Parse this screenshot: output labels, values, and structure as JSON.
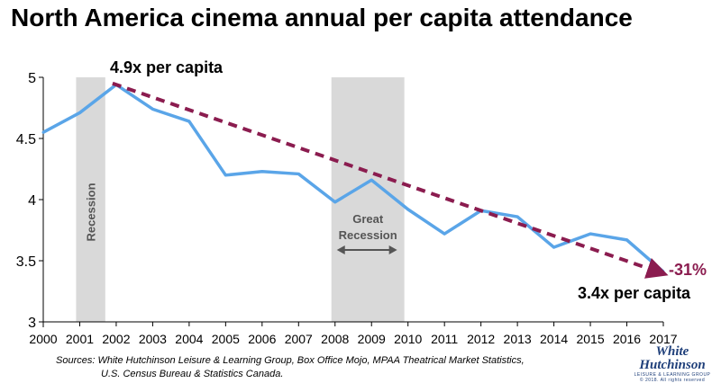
{
  "title": "North America cinema annual per capita attendance",
  "chart_data": {
    "type": "line",
    "x": [
      "2000",
      "2001",
      "2002",
      "2003",
      "2004",
      "2005",
      "2006",
      "2007",
      "2008",
      "2009",
      "2010",
      "2011",
      "2012",
      "2013",
      "2014",
      "2015",
      "2016",
      "2017"
    ],
    "values": [
      4.55,
      4.71,
      4.94,
      4.74,
      4.64,
      4.2,
      4.23,
      4.21,
      3.98,
      4.16,
      3.92,
      3.72,
      3.91,
      3.86,
      3.61,
      3.72,
      3.67,
      3.41
    ],
    "yticks": [
      "3",
      "3.5",
      "4",
      "4.5",
      "5"
    ],
    "ylim": [
      3,
      5.2
    ],
    "line_color": "#5aa5e8",
    "trend": {
      "from": [
        "2001.9",
        4.95
      ],
      "to": [
        "2017",
        3.4
      ],
      "color": "#8b1c4f"
    },
    "shaded_periods": [
      {
        "start": 2000.9,
        "end": 2001.7,
        "label": "Recession"
      },
      {
        "start": 2007.9,
        "end": 2009.9,
        "label": "Great\nRecession"
      }
    ],
    "annotations": {
      "start_label": "4.9x per capita",
      "end_label": "3.4x per capita",
      "change_label": "-31%",
      "great_recession_line1": "Great",
      "great_recession_line2": "Recession",
      "recession": "Recession"
    },
    "shade_color": "#d9d9d9",
    "accent_color": "#8b1c4f"
  },
  "sources": {
    "line1": "Sources:  White Hutchinson Leisure & Learning Group, Box Office Mojo, MPAA Theatrical Market Statistics,",
    "line2": "U.S. Census Bureau & Statistics Canada."
  },
  "logo": {
    "line1": "White",
    "line2": "Hutchinson",
    "tagline": "LEISURE & LEARNING GROUP",
    "copyright": "© 2018. All rights reserved"
  }
}
